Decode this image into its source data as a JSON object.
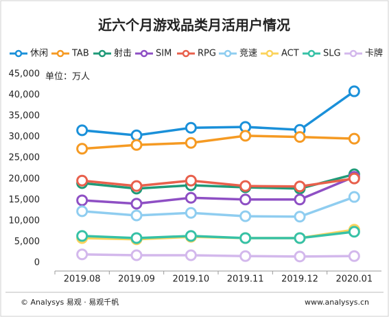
{
  "chart_data": {
    "type": "line",
    "title": "近六个月游戏品类月活用户情况",
    "unit": "单位：万人",
    "categories": [
      "2019.08",
      "2019.09",
      "2019.10",
      "2019.11",
      "2019.12",
      "2020.01"
    ],
    "series": [
      {
        "name": "休闲",
        "color": "#1a90d9",
        "values": [
          31600,
          30400,
          32200,
          32400,
          31700,
          40900
        ]
      },
      {
        "name": "TAB",
        "color": "#f59a23",
        "values": [
          27200,
          28100,
          28600,
          30300,
          30000,
          29600
        ]
      },
      {
        "name": "射击",
        "color": "#1f9a78",
        "values": [
          19000,
          17700,
          18500,
          18000,
          17700,
          21100
        ]
      },
      {
        "name": "SIM",
        "color": "#8e4fc4",
        "values": [
          14900,
          14100,
          15500,
          15100,
          15100,
          20500
        ]
      },
      {
        "name": "RPG",
        "color": "#e8604c",
        "values": [
          19600,
          18300,
          19600,
          18300,
          18200,
          20100
        ]
      },
      {
        "name": "竞速",
        "color": "#8fcdf0",
        "values": [
          12300,
          11300,
          11900,
          11100,
          11000,
          15700
        ]
      },
      {
        "name": "ACT",
        "color": "#fbd35c",
        "values": [
          5900,
          5600,
          6200,
          5900,
          5900,
          7900
        ]
      },
      {
        "name": "SLG",
        "color": "#36c1a6",
        "values": [
          6400,
          5900,
          6400,
          5900,
          5900,
          7400
        ]
      },
      {
        "name": "卡牌",
        "color": "#d3b8ec",
        "values": [
          2000,
          1800,
          1800,
          1600,
          1500,
          1600
        ]
      }
    ],
    "ylim": [
      0,
      45000
    ],
    "yticks": [
      0,
      {
        "value": 5000,
        "label": "5,000"
      },
      {
        "value": 10000,
        "label": "10,000"
      },
      {
        "value": 15000,
        "label": "15,000"
      },
      {
        "value": 20000,
        "label": "20,000"
      },
      {
        "value": 25000,
        "label": "25,000"
      },
      {
        "value": 30000,
        "label": "30,000"
      },
      {
        "value": 35000,
        "label": "35,000"
      },
      {
        "value": 40000,
        "label": "40,000"
      },
      {
        "value": 45000,
        "label": "45,000"
      }
    ],
    "grid": false,
    "source": "© Analysys 易观 · 易观千帆",
    "website": "www.analysys.cn"
  }
}
